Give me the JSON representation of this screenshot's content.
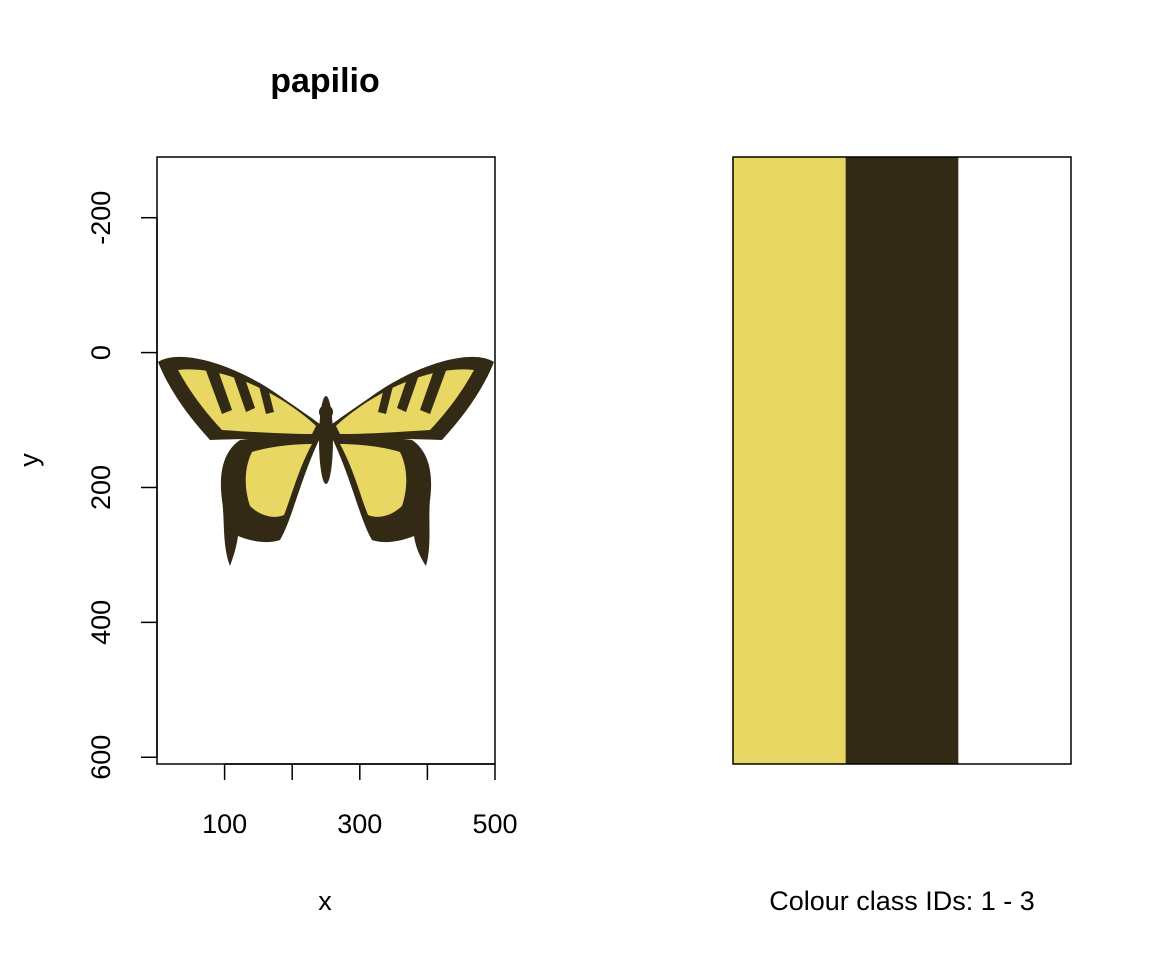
{
  "chart_data": [
    {
      "type": "image",
      "title": "papilio",
      "xlabel": "x",
      "ylabel": "y",
      "xlim": [
        0,
        500
      ],
      "ylim": [
        -290,
        610
      ],
      "y_reversed": true,
      "xticks": [
        0,
        100,
        200,
        300,
        400,
        500
      ],
      "xtick_labels": [
        "",
        "100",
        "",
        "300",
        "",
        "500"
      ],
      "yticks": [
        -200,
        0,
        200,
        400,
        600
      ],
      "ytick_labels": [
        "-200",
        "0",
        "200",
        "400",
        "600"
      ],
      "image_extent": {
        "x": [
          0,
          500
        ],
        "y": [
          0,
          400
        ]
      },
      "image_subject": "classified swallowtail butterfly (Papilio)",
      "colors": {
        "class1": "#e8d762",
        "class2": "#322a14",
        "background": "#ffffff"
      }
    },
    {
      "type": "heatmap",
      "xlabel": "Colour class IDs: 1 - 3",
      "categories": [
        1,
        2,
        3
      ],
      "colors": [
        "#e8d762",
        "#322a14",
        "#ffffff"
      ]
    }
  ]
}
